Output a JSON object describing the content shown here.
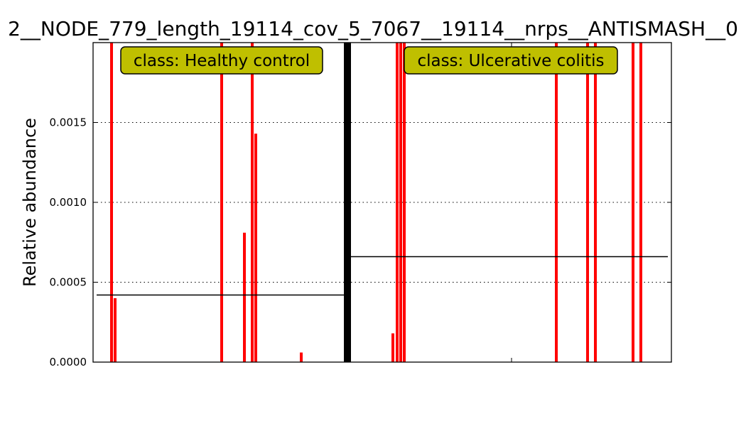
{
  "chart_data": {
    "type": "bar",
    "title": "2__NODE_779_length_19114_cov_5_7067__19114__nrps__ANTISMASH__0",
    "xlabel": "",
    "ylabel": "Relative abundance",
    "ylim": [
      0,
      0.002
    ],
    "yticks": [
      "0.0000",
      "0.0005",
      "0.0010",
      "0.0015"
    ],
    "grid": "horizontal-dotted",
    "bar_color": "#ff0000",
    "groups": [
      {
        "label": "class: Healthy control",
        "mean": 0.00042,
        "values": [
          0.002,
          0.0004,
          0.002,
          0.00081,
          0.002,
          0.00143,
          6e-05
        ]
      },
      {
        "label": "class: Ulcerative colitis",
        "mean": 0.00066,
        "values": [
          0.00018,
          0.002,
          0.002,
          0.002,
          0.002,
          0.002,
          0.002,
          0.002,
          0.002
        ]
      }
    ]
  }
}
